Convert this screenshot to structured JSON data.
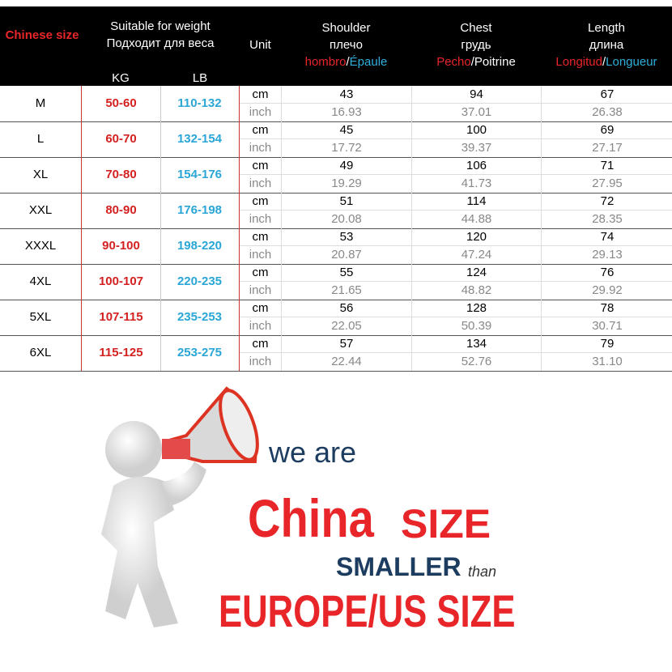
{
  "header": {
    "size": "Chinese size",
    "weight_en": "Suitable for weight",
    "weight_ru": "Подходит для веса",
    "kg": "KG",
    "lb": "LB",
    "unit": "Unit",
    "shoulder": {
      "en": "Shoulder",
      "ru": "плечо",
      "es": "hombro",
      "sep": "/",
      "fr": "Épaule"
    },
    "chest": {
      "en": "Chest",
      "ru": "грудь",
      "es": "Pecho",
      "sep": "/",
      "fr": "Poitrine"
    },
    "length": {
      "en": "Length",
      "ru": "длина",
      "es": "Longitud",
      "sep": "/",
      "fr": "Longueur"
    }
  },
  "units": {
    "cm": "cm",
    "inch": "inch"
  },
  "rows": [
    {
      "size": "M",
      "kg": "50-60",
      "lb": "110-132",
      "shoulder_cm": "43",
      "shoulder_in": "16.93",
      "chest_cm": "94",
      "chest_in": "37.01",
      "length_cm": "67",
      "length_in": "26.38"
    },
    {
      "size": "L",
      "kg": "60-70",
      "lb": "132-154",
      "shoulder_cm": "45",
      "shoulder_in": "17.72",
      "chest_cm": "100",
      "chest_in": "39.37",
      "length_cm": "69",
      "length_in": "27.17"
    },
    {
      "size": "XL",
      "kg": "70-80",
      "lb": "154-176",
      "shoulder_cm": "49",
      "shoulder_in": "19.29",
      "chest_cm": "106",
      "chest_in": "41.73",
      "length_cm": "71",
      "length_in": "27.95"
    },
    {
      "size": "XXL",
      "kg": "80-90",
      "lb": "176-198",
      "shoulder_cm": "51",
      "shoulder_in": "20.08",
      "chest_cm": "114",
      "chest_in": "44.88",
      "length_cm": "72",
      "length_in": "28.35"
    },
    {
      "size": "XXXL",
      "kg": "90-100",
      "lb": "198-220",
      "shoulder_cm": "53",
      "shoulder_in": "20.87",
      "chest_cm": "120",
      "chest_in": "47.24",
      "length_cm": "74",
      "length_in": "29.13"
    },
    {
      "size": "4XL",
      "kg": "100-107",
      "lb": "220-235",
      "shoulder_cm": "55",
      "shoulder_in": "21.65",
      "chest_cm": "124",
      "chest_in": "48.82",
      "length_cm": "76",
      "length_in": "29.92"
    },
    {
      "size": "5XL",
      "kg": "107-115",
      "lb": "235-253",
      "shoulder_cm": "56",
      "shoulder_in": "22.05",
      "chest_cm": "128",
      "chest_in": "50.39",
      "length_cm": "78",
      "length_in": "30.71"
    },
    {
      "size": "6XL",
      "kg": "115-125",
      "lb": "253-275",
      "shoulder_cm": "57",
      "shoulder_in": "22.44",
      "chest_cm": "134",
      "chest_in": "52.76",
      "length_cm": "79",
      "length_in": "31.10"
    }
  ],
  "banner": {
    "line1": "we are",
    "china": "China",
    "size": "SIZE",
    "smaller": "SMALLER",
    "than": "than",
    "europe": "EUROPE/US SIZE"
  },
  "colors": {
    "red": "#e8262a",
    "blue": "#2fb0dc",
    "navy": "#1d3d60"
  }
}
